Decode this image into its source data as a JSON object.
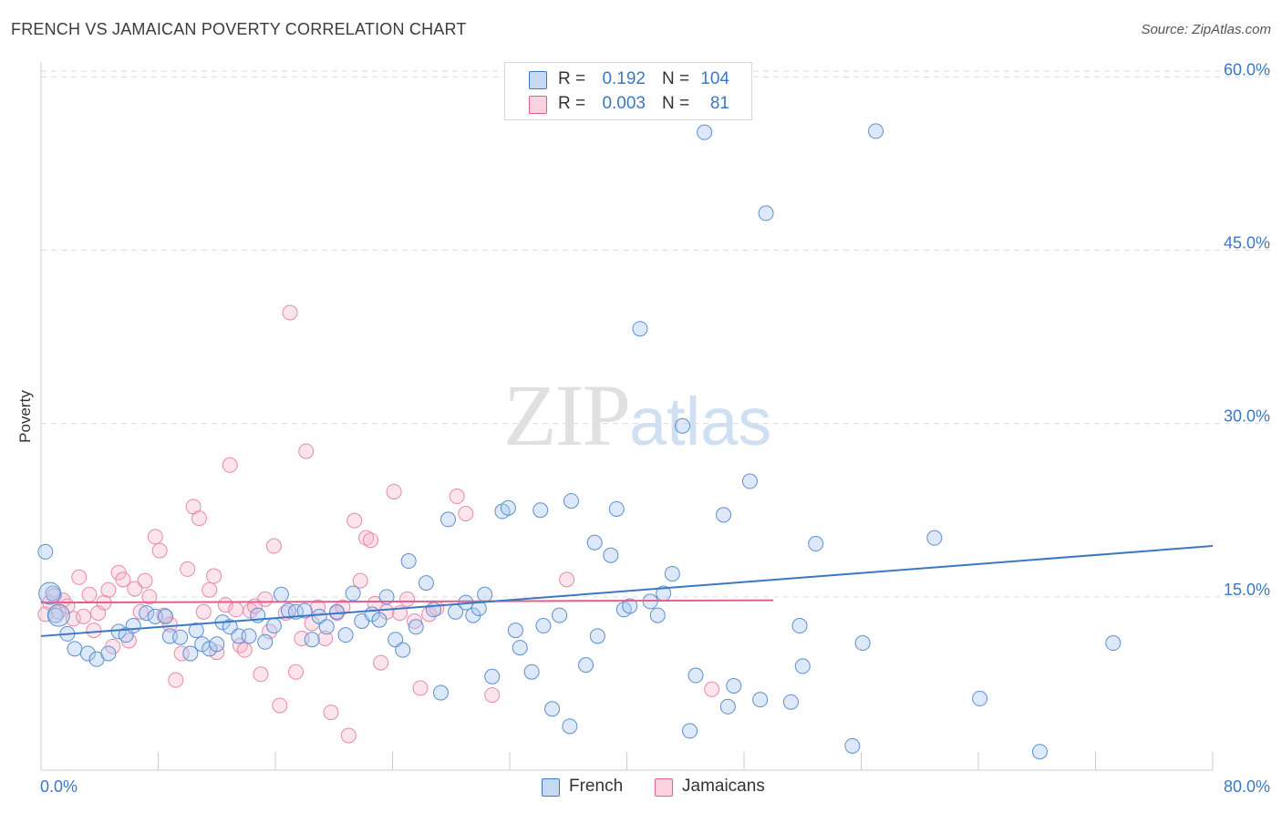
{
  "header": {
    "title": "FRENCH VS JAMAICAN POVERTY CORRELATION CHART",
    "source": "Source: ZipAtlas.com"
  },
  "watermark": {
    "zip": "ZIP",
    "atlas": "atlas"
  },
  "legend": {
    "rows": [
      {
        "r_label": "R =",
        "r_value": "0.192",
        "n_label": "N =",
        "n_value": "104",
        "color": "#a9c8ef"
      },
      {
        "r_label": "R =",
        "r_value": "0.003",
        "n_label": "N =",
        "n_value": "81",
        "color": "#f5b3c8"
      }
    ]
  },
  "bottom_legend": [
    {
      "label": "French",
      "color": "#a9c8ef"
    },
    {
      "label": "Jamaicans",
      "color": "#f5b3c8"
    }
  ],
  "chart_data": {
    "type": "scatter",
    "title": "FRENCH VS JAMAICAN POVERTY CORRELATION CHART",
    "xlabel": "",
    "ylabel": "Poverty",
    "xlim": [
      0,
      80
    ],
    "ylim": [
      0,
      60
    ],
    "x_tick_labels": [
      "0.0%",
      "80.0%"
    ],
    "y_tick_labels": [
      "15.0%",
      "30.0%",
      "45.0%",
      "60.0%"
    ],
    "y_ticks": [
      15,
      30,
      45,
      60
    ],
    "grid": "horizontal dashed",
    "legend_position": "top-center",
    "colors": {
      "French": "#3b78c4",
      "French_fill": "#a9c8ef",
      "Jamaicans": "#e0608b",
      "Jamaicans_fill": "#f5b3c8"
    },
    "series": [
      {
        "name": "French",
        "trendline": {
          "x": [
            0,
            80
          ],
          "y": [
            11.6,
            19.4
          ]
        },
        "points": [
          [
            0.3,
            18.9
          ],
          [
            0.8,
            15.3
          ],
          [
            1.0,
            13.4
          ],
          [
            1.8,
            11.8
          ],
          [
            2.3,
            10.5
          ],
          [
            3.2,
            10.1
          ],
          [
            3.8,
            9.6
          ],
          [
            4.6,
            10.1
          ],
          [
            5.3,
            12.0
          ],
          [
            5.8,
            11.7
          ],
          [
            6.3,
            12.5
          ],
          [
            7.2,
            13.6
          ],
          [
            7.8,
            13.3
          ],
          [
            8.5,
            13.3
          ],
          [
            8.8,
            11.6
          ],
          [
            9.5,
            11.5
          ],
          [
            10.2,
            10.1
          ],
          [
            10.6,
            12.1
          ],
          [
            11.0,
            10.9
          ],
          [
            11.5,
            10.5
          ],
          [
            12.0,
            10.9
          ],
          [
            12.4,
            12.8
          ],
          [
            12.9,
            12.4
          ],
          [
            13.5,
            11.6
          ],
          [
            14.2,
            11.6
          ],
          [
            14.8,
            13.4
          ],
          [
            15.3,
            11.1
          ],
          [
            15.9,
            12.5
          ],
          [
            16.4,
            15.2
          ],
          [
            16.9,
            13.8
          ],
          [
            17.4,
            13.7
          ],
          [
            18.0,
            13.8
          ],
          [
            18.5,
            11.3
          ],
          [
            19.0,
            13.3
          ],
          [
            19.5,
            12.4
          ],
          [
            20.2,
            13.7
          ],
          [
            20.8,
            11.7
          ],
          [
            21.3,
            15.3
          ],
          [
            21.9,
            12.9
          ],
          [
            22.6,
            13.5
          ],
          [
            23.1,
            13.0
          ],
          [
            23.6,
            15.0
          ],
          [
            24.2,
            11.3
          ],
          [
            24.7,
            10.4
          ],
          [
            25.1,
            18.1
          ],
          [
            25.6,
            12.4
          ],
          [
            26.3,
            16.2
          ],
          [
            26.8,
            13.9
          ],
          [
            27.3,
            6.7
          ],
          [
            27.8,
            21.7
          ],
          [
            28.3,
            13.7
          ],
          [
            29.0,
            14.5
          ],
          [
            29.5,
            13.4
          ],
          [
            29.9,
            14.0
          ],
          [
            30.3,
            15.2
          ],
          [
            30.8,
            8.1
          ],
          [
            31.5,
            22.4
          ],
          [
            31.9,
            22.7
          ],
          [
            32.4,
            12.1
          ],
          [
            32.7,
            10.6
          ],
          [
            33.5,
            8.5
          ],
          [
            34.1,
            22.5
          ],
          [
            34.3,
            12.5
          ],
          [
            34.9,
            5.3
          ],
          [
            35.4,
            13.4
          ],
          [
            36.2,
            23.3
          ],
          [
            36.1,
            3.8
          ],
          [
            37.2,
            9.1
          ],
          [
            37.8,
            19.7
          ],
          [
            38.0,
            11.6
          ],
          [
            38.9,
            18.6
          ],
          [
            39.3,
            22.6
          ],
          [
            39.8,
            13.9
          ],
          [
            40.2,
            14.2
          ],
          [
            40.9,
            38.2
          ],
          [
            41.6,
            14.6
          ],
          [
            42.1,
            13.4
          ],
          [
            42.5,
            15.3
          ],
          [
            43.1,
            17.0
          ],
          [
            43.8,
            29.8
          ],
          [
            44.3,
            3.4
          ],
          [
            44.7,
            8.2
          ],
          [
            45.3,
            55.2
          ],
          [
            46.6,
            22.1
          ],
          [
            46.9,
            5.5
          ],
          [
            47.3,
            7.3
          ],
          [
            48.4,
            25.0
          ],
          [
            49.1,
            6.1
          ],
          [
            49.5,
            48.2
          ],
          [
            51.2,
            5.9
          ],
          [
            51.8,
            12.5
          ],
          [
            52.0,
            9.0
          ],
          [
            52.9,
            19.6
          ],
          [
            55.4,
            2.1
          ],
          [
            56.1,
            11.0
          ],
          [
            57.0,
            55.3
          ],
          [
            61.0,
            20.1
          ],
          [
            64.1,
            6.2
          ],
          [
            68.2,
            1.6
          ],
          [
            73.2,
            11.0
          ]
        ],
        "big_points": [
          [
            0.6,
            15.3
          ],
          [
            1.2,
            13.4
          ]
        ]
      },
      {
        "name": "Jamaicans",
        "trendline": {
          "x": [
            0,
            50
          ],
          "y": [
            14.5,
            14.7
          ]
        },
        "points": [
          [
            0.3,
            13.5
          ],
          [
            0.6,
            14.5
          ],
          [
            0.9,
            15.1
          ],
          [
            1.2,
            13.7
          ],
          [
            1.5,
            14.7
          ],
          [
            1.8,
            14.2
          ],
          [
            2.2,
            13.1
          ],
          [
            2.6,
            16.7
          ],
          [
            2.9,
            13.3
          ],
          [
            3.3,
            15.2
          ],
          [
            3.6,
            12.1
          ],
          [
            3.9,
            13.6
          ],
          [
            4.3,
            14.5
          ],
          [
            4.6,
            15.6
          ],
          [
            4.9,
            10.7
          ],
          [
            5.3,
            17.1
          ],
          [
            5.6,
            16.5
          ],
          [
            6.0,
            11.2
          ],
          [
            6.4,
            15.7
          ],
          [
            6.8,
            13.7
          ],
          [
            7.1,
            16.4
          ],
          [
            7.4,
            15.0
          ],
          [
            7.8,
            20.2
          ],
          [
            8.1,
            19.0
          ],
          [
            8.4,
            13.4
          ],
          [
            8.8,
            12.6
          ],
          [
            9.2,
            7.8
          ],
          [
            9.6,
            10.1
          ],
          [
            10.0,
            17.4
          ],
          [
            10.4,
            22.8
          ],
          [
            10.8,
            21.8
          ],
          [
            11.1,
            13.7
          ],
          [
            11.5,
            15.6
          ],
          [
            11.8,
            16.8
          ],
          [
            12.0,
            10.2
          ],
          [
            12.6,
            14.3
          ],
          [
            12.9,
            26.4
          ],
          [
            13.3,
            13.9
          ],
          [
            13.6,
            10.8
          ],
          [
            13.9,
            10.4
          ],
          [
            14.3,
            13.8
          ],
          [
            14.6,
            14.2
          ],
          [
            15.0,
            8.3
          ],
          [
            15.3,
            14.8
          ],
          [
            15.6,
            12.0
          ],
          [
            15.9,
            19.4
          ],
          [
            16.3,
            5.6
          ],
          [
            16.7,
            13.6
          ],
          [
            17.0,
            39.6
          ],
          [
            17.4,
            8.5
          ],
          [
            17.8,
            11.4
          ],
          [
            18.1,
            27.6
          ],
          [
            18.5,
            12.7
          ],
          [
            18.9,
            14.1
          ],
          [
            19.4,
            11.4
          ],
          [
            19.8,
            5.0
          ],
          [
            20.2,
            13.6
          ],
          [
            20.6,
            14.1
          ],
          [
            21.0,
            3.0
          ],
          [
            21.4,
            21.6
          ],
          [
            21.8,
            16.4
          ],
          [
            22.2,
            20.1
          ],
          [
            22.5,
            19.9
          ],
          [
            22.8,
            14.4
          ],
          [
            23.2,
            9.3
          ],
          [
            23.6,
            13.7
          ],
          [
            24.1,
            24.1
          ],
          [
            24.5,
            13.6
          ],
          [
            25.0,
            14.8
          ],
          [
            25.5,
            12.9
          ],
          [
            25.9,
            7.1
          ],
          [
            26.5,
            13.5
          ],
          [
            27.0,
            14.0
          ],
          [
            28.4,
            23.7
          ],
          [
            29.0,
            22.2
          ],
          [
            30.8,
            6.5
          ],
          [
            35.9,
            16.5
          ],
          [
            45.8,
            7.0
          ]
        ]
      }
    ]
  }
}
